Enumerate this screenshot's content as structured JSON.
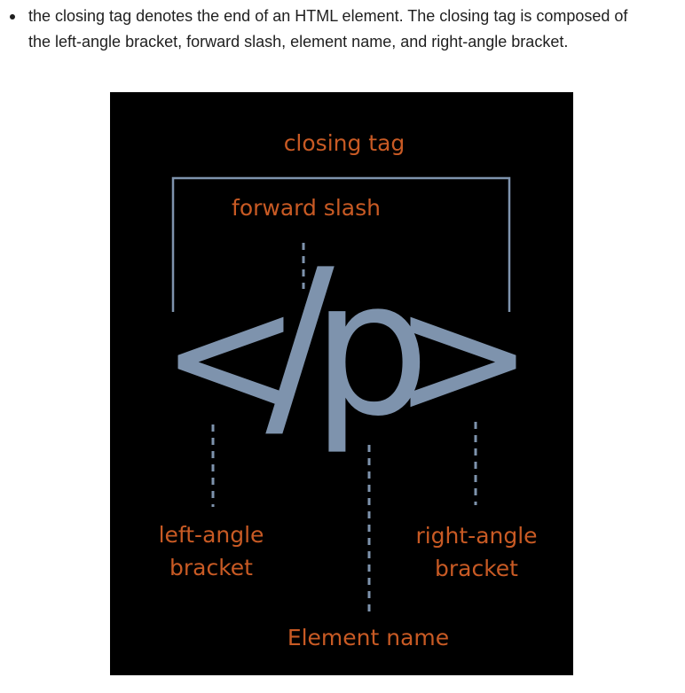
{
  "description": {
    "bullet_text": "the closing tag denotes the end of an HTML element. The closing tag is composed of the left-angle bracket, forward slash, element name, and right-angle bracket."
  },
  "diagram": {
    "colors": {
      "background": "#000000",
      "label": "#c85a24",
      "glyph": "#7e93ad",
      "connector": "#7e93ad"
    },
    "closing_tag_label": "closing tag",
    "forward_slash_label": "forward slash",
    "glyphs": {
      "left_angle": "<",
      "slash": "/",
      "element": "p",
      "right_angle": ">"
    },
    "left_angle_label": [
      "left-angle",
      "bracket"
    ],
    "right_angle_label": [
      "right-angle",
      "bracket"
    ],
    "element_name_label": "Element name"
  }
}
